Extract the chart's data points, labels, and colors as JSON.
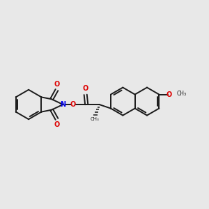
{
  "background_color": "#e8e8e8",
  "bond_color": "#1a1a1a",
  "N_color": "#0000ee",
  "O_color": "#dd0000",
  "figsize": [
    3.0,
    3.0
  ],
  "dpi": 100,
  "xlim": [
    0,
    10
  ],
  "ylim": [
    2,
    8
  ]
}
